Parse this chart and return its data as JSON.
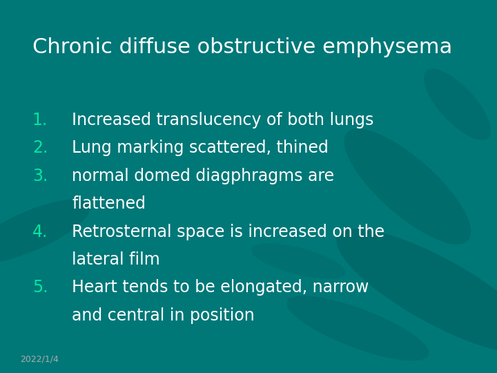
{
  "background_color": "#007878",
  "title": "Chronic diffuse obstructive emphysema",
  "title_color": "#ffffff",
  "title_fontsize": 22,
  "number_color": "#00e8a0",
  "text_color": "#ffffff",
  "items": [
    {
      "number": "1.",
      "line1": "Increased translucency of both lungs",
      "line2": null
    },
    {
      "number": "2.",
      "line1": "Lung marking scattered, thined",
      "line2": null
    },
    {
      "number": "3.",
      "line1": "normal domed diagphragms are",
      "line2": "flattened"
    },
    {
      "number": "4.",
      "line1": "Retrosternal space is increased on the",
      "line2": "lateral film"
    },
    {
      "number": "5.",
      "line1": "Heart tends to be elongated, narrow",
      "line2": "and central in position"
    }
  ],
  "item_fontsize": 17,
  "date_text": "2022/1/4",
  "date_fontsize": 9,
  "date_color": "#aaaaaa",
  "leaf_color": "#005f5f"
}
